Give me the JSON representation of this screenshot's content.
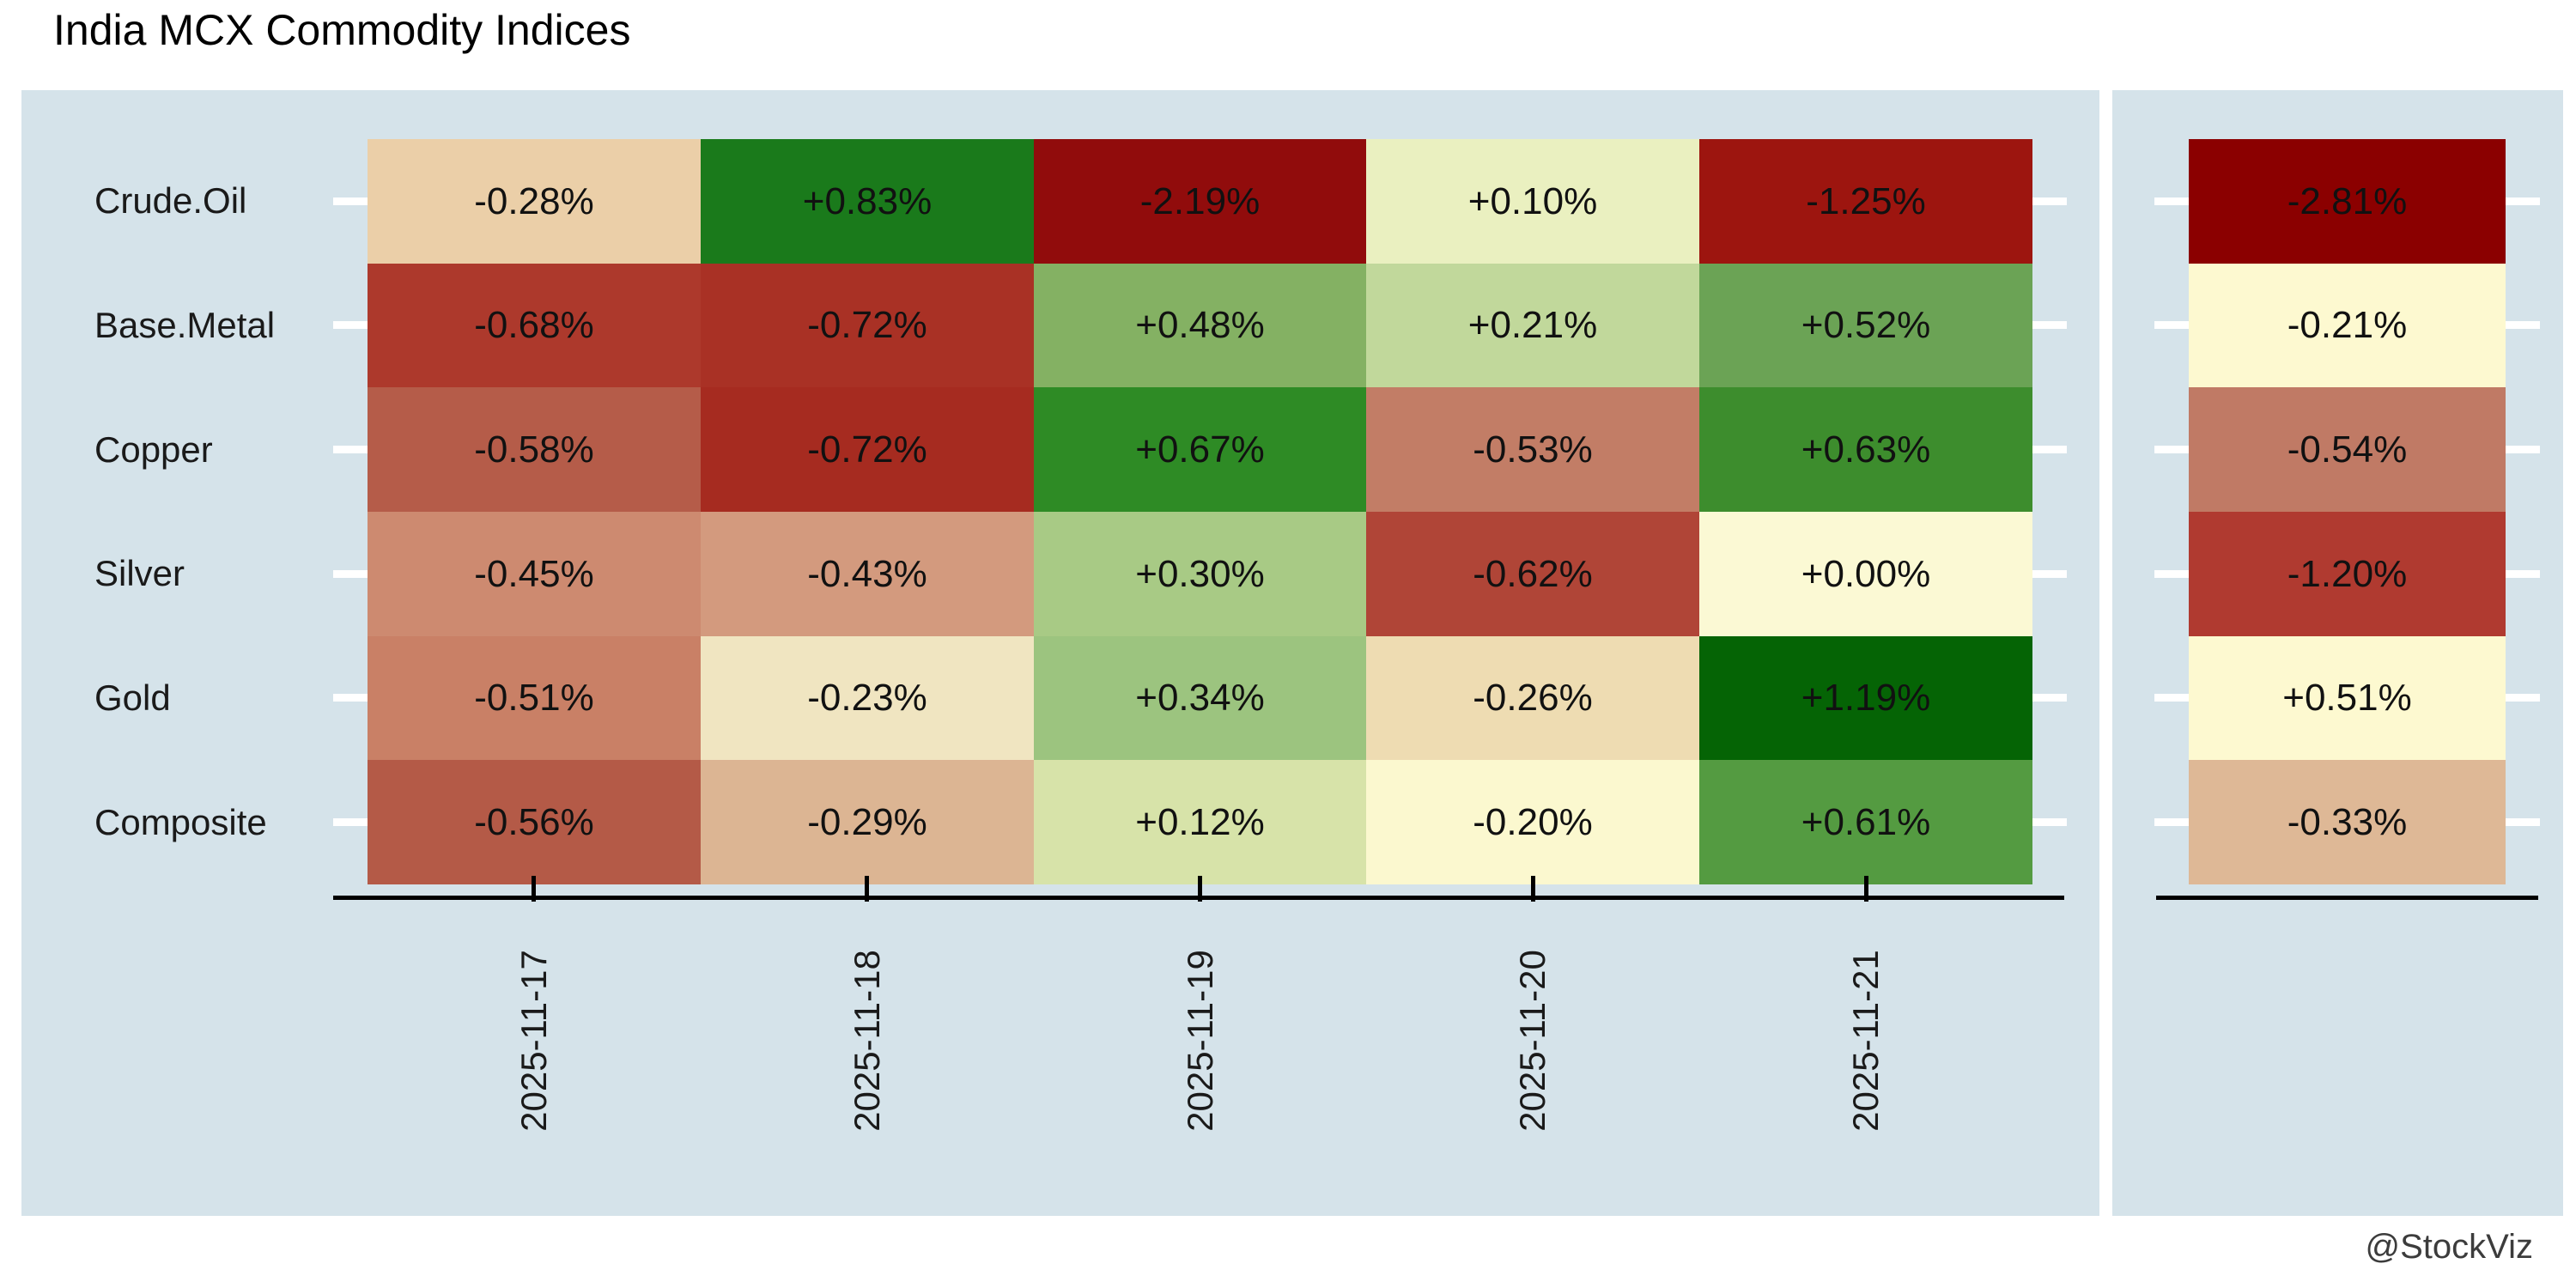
{
  "title": "India MCX Commodity Indices",
  "watermark": "@StockViz",
  "colors": {
    "panel_bg": "#d5e3ea",
    "page_bg": "#ffffff",
    "axis_black": "#000000",
    "tick_white": "#ffffff",
    "cell_text": "#111111",
    "label_text": "#1a1a1a",
    "watermark_text": "#3c3c3c",
    "strong_negative": "#8b0000",
    "strong_positive": "#056405",
    "neutral": "#fbf8cf"
  },
  "chart_data": {
    "type": "heatmap",
    "title": "India MCX Commodity Indices",
    "rows": [
      "Crude.Oil",
      "Base.Metal",
      "Copper",
      "Silver",
      "Gold",
      "Composite"
    ],
    "columns": [
      "2025-11-17",
      "2025-11-18",
      "2025-11-19",
      "2025-11-20",
      "2025-11-21"
    ],
    "legend_position": "none",
    "grid": false,
    "unit": "percent daily change; right detached column = cumulative change for the week",
    "series": [
      {
        "name": "Crude.Oil",
        "values": [
          -0.28,
          0.83,
          -2.19,
          0.1,
          -1.25
        ],
        "labels": [
          "-0.28%",
          "+0.83%",
          "-2.19%",
          "+0.10%",
          "-1.25%"
        ],
        "cell_colors": [
          "#ebcfa8",
          "#1a7a1b",
          "#910c0c",
          "#eaf0c0",
          "#9d150f"
        ],
        "weekly_value": -2.81,
        "weekly_label": "-2.81%",
        "weekly_color": "#8b0000"
      },
      {
        "name": "Base.Metal",
        "values": [
          -0.68,
          -0.72,
          0.48,
          0.21,
          0.52
        ],
        "labels": [
          "-0.68%",
          "-0.72%",
          "+0.48%",
          "+0.21%",
          "+0.52%"
        ],
        "cell_colors": [
          "#ad392c",
          "#a93125",
          "#84b163",
          "#c1d89b",
          "#6ba355"
        ],
        "weekly_value": -0.21,
        "weekly_label": "-0.21%",
        "weekly_color": "#fdf9d0"
      },
      {
        "name": "Copper",
        "values": [
          -0.58,
          -0.72,
          0.67,
          -0.53,
          0.63
        ],
        "labels": [
          "-0.58%",
          "-0.72%",
          "+0.67%",
          "-0.53%",
          "+0.63%"
        ],
        "cell_colors": [
          "#b55c49",
          "#a62b20",
          "#2e8b25",
          "#c27d66",
          "#3d8d2d"
        ],
        "weekly_value": -0.54,
        "weekly_label": "-0.54%",
        "weekly_color": "#c07a65"
      },
      {
        "name": "Silver",
        "values": [
          -0.45,
          -0.43,
          0.3,
          -0.62,
          0.0
        ],
        "labels": [
          "-0.45%",
          "-0.43%",
          "+0.30%",
          "-0.62%",
          "+0.00%"
        ],
        "cell_colors": [
          "#cd8a70",
          "#d39a7e",
          "#a8ca85",
          "#b04537",
          "#fbf9d4"
        ],
        "weekly_value": -1.2,
        "weekly_label": "-1.20%",
        "weekly_color": "#b03a30"
      },
      {
        "name": "Gold",
        "values": [
          -0.51,
          -0.23,
          0.34,
          -0.26,
          1.19
        ],
        "labels": [
          "-0.51%",
          "-0.23%",
          "+0.34%",
          "-0.26%",
          "+1.19%"
        ],
        "cell_colors": [
          "#c98066",
          "#f0e5c1",
          "#9cc47f",
          "#eedcb2",
          "#056405"
        ],
        "weekly_value": 0.51,
        "weekly_label": "+0.51%",
        "weekly_color": "#fdf9d0"
      },
      {
        "name": "Composite",
        "values": [
          -0.56,
          -0.29,
          0.12,
          -0.2,
          0.61
        ],
        "labels": [
          "-0.56%",
          "-0.29%",
          "+0.12%",
          "-0.20%",
          "+0.61%"
        ],
        "cell_colors": [
          "#b45a47",
          "#dcb593",
          "#d7e3a9",
          "#fbf8cf",
          "#549b41"
        ],
        "weekly_value": -0.33,
        "weekly_label": "-0.33%",
        "weekly_color": "#deb896"
      }
    ]
  }
}
